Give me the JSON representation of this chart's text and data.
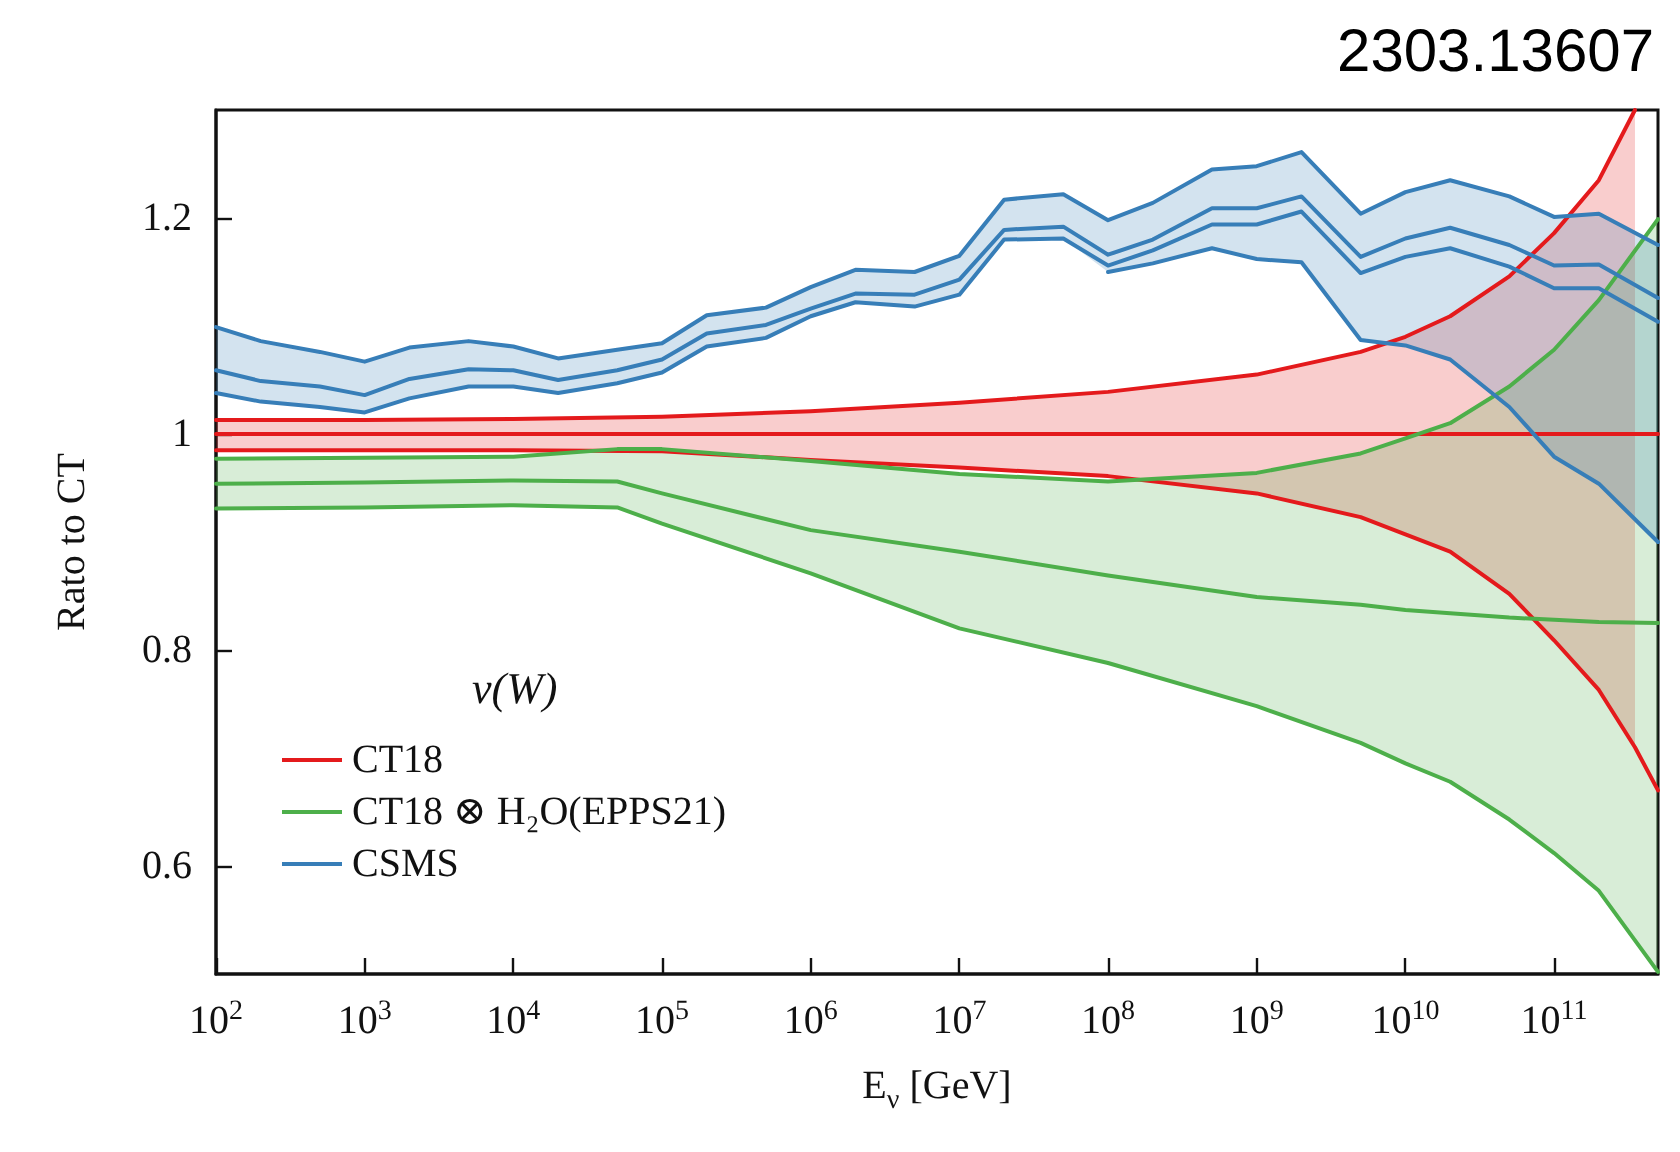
{
  "chart_data": {
    "type": "line",
    "title": "2303.13607",
    "xlabel": "E$_{ν}$ [GeV]",
    "ylabel": "Rato to CT",
    "legend_title": "ν(W)",
    "legend": "bottom left",
    "grid": false,
    "log": "x",
    "xlim": [
      100,
      500000000000
    ],
    "xticks": [
      {
        "value": 100,
        "label": "10$^{2}$"
      },
      {
        "value": 1000,
        "label": "10$^{3}$"
      },
      {
        "value": 10000,
        "label": "10$^{4}$"
      },
      {
        "value": 100000,
        "label": "10$^{5}$"
      },
      {
        "value": 1000000,
        "label": "10$^{6}$"
      },
      {
        "value": 10000000,
        "label": "10$^{7}$"
      },
      {
        "value": 100000000,
        "label": "10$^{8}$"
      },
      {
        "value": 1000000000,
        "label": "10$^{9}$"
      },
      {
        "value": 10000000000,
        "label": "10$^{10}$"
      },
      {
        "value": 100000000000,
        "label": "10$^{11}$"
      }
    ],
    "ylim": [
      0.5,
      1.3
    ],
    "yticks": [
      0.6,
      0.8,
      1.0,
      1.2
    ],
    "marker": "none",
    "line_style": "solid",
    "series": [
      {
        "name": "CT18",
        "color": "#e41a1c",
        "x": [
          100,
          1000,
          10000,
          100000,
          1000000,
          10000000,
          100000000,
          1000000000,
          5000000000,
          10000000000,
          20000000000,
          50000000000,
          100000000000,
          200000000000,
          350000000000,
          500000000000
        ],
        "values": [
          1.0,
          1.0,
          1.0,
          1.0,
          1.0,
          1.0,
          1.0,
          1.0,
          1.0,
          1.0,
          1.0,
          1.0,
          1.0,
          1.0,
          1.0,
          1.0
        ]
      },
      {
        "color": "#e41a1c",
        "x": [
          100,
          1000,
          10000,
          100000,
          1000000,
          10000000,
          100000000,
          1000000000,
          5000000000,
          10000000000,
          20000000000,
          50000000000,
          100000000000,
          200000000000,
          350000000000
        ],
        "values": [
          1.013,
          1.013,
          1.014,
          1.016,
          1.021,
          1.029,
          1.039,
          1.055,
          1.076,
          1.09,
          1.109,
          1.146,
          1.186,
          1.235,
          1.3
        ],
        "lower": [
          0.985,
          0.985,
          0.985,
          0.984,
          0.976,
          0.969,
          0.961,
          0.945,
          0.923,
          0.907,
          0.891,
          0.852,
          0.809,
          0.763,
          0.71
        ],
        "upper": [
          1.013,
          1.013,
          1.014,
          1.016,
          1.021,
          1.029,
          1.039,
          1.055,
          1.076,
          1.09,
          1.109,
          1.146,
          1.186,
          1.235,
          1.3
        ]
      },
      {
        "color": "#e41a1c",
        "x": [
          100,
          1000,
          10000,
          100000,
          1000000,
          10000000,
          100000000,
          1000000000,
          5000000000,
          10000000000,
          20000000000,
          50000000000,
          100000000000,
          200000000000,
          350000000000,
          500000000000
        ],
        "values": [
          0.985,
          0.985,
          0.985,
          0.984,
          0.976,
          0.969,
          0.961,
          0.945,
          0.923,
          0.907,
          0.891,
          0.852,
          0.809,
          0.763,
          0.71,
          0.67
        ]
      },
      {
        "name": "CT18 ⊗ H₂O(EPPS21)",
        "color": "#4daf4a",
        "x": [
          100,
          1000,
          10000,
          50000,
          100000,
          1000000,
          10000000,
          100000000,
          1000000000,
          5000000000,
          10000000000,
          20000000000,
          50000000000,
          100000000000,
          200000000000,
          500000000000
        ],
        "values": [
          0.954,
          0.955,
          0.957,
          0.956,
          0.945,
          0.911,
          0.891,
          0.869,
          0.849,
          0.842,
          0.837,
          0.834,
          0.83,
          0.828,
          0.826,
          0.825
        ],
        "lower": [
          0.931,
          0.932,
          0.934,
          0.932,
          0.917,
          0.871,
          0.82,
          0.788,
          0.748,
          0.714,
          0.695,
          0.678,
          0.643,
          0.612,
          0.577,
          0.502
        ],
        "upper": [
          0.977,
          0.978,
          0.979,
          0.986,
          0.986,
          0.975,
          0.963,
          0.956,
          0.964,
          0.982,
          0.996,
          1.01,
          1.044,
          1.078,
          1.124,
          1.199
        ]
      },
      {
        "color": "#4daf4a",
        "x": [
          100,
          1000,
          10000,
          50000,
          100000,
          1000000,
          10000000,
          100000000,
          1000000000,
          5000000000,
          10000000000,
          20000000000,
          50000000000,
          100000000000,
          200000000000,
          500000000000
        ],
        "values": [
          0.931,
          0.932,
          0.934,
          0.932,
          0.917,
          0.871,
          0.82,
          0.788,
          0.748,
          0.714,
          0.695,
          0.678,
          0.643,
          0.612,
          0.577,
          0.502
        ]
      },
      {
        "color": "#4daf4a",
        "x": [
          100,
          1000,
          10000,
          50000,
          100000,
          1000000,
          10000000,
          100000000,
          1000000000,
          5000000000,
          10000000000,
          20000000000,
          50000000000,
          100000000000,
          200000000000,
          500000000000
        ],
        "values": [
          0.977,
          0.978,
          0.979,
          0.986,
          0.986,
          0.975,
          0.963,
          0.956,
          0.964,
          0.982,
          0.996,
          1.01,
          1.044,
          1.078,
          1.124,
          1.199
        ]
      },
      {
        "name": "CSMS",
        "color": "#377eb8",
        "x": [
          100,
          200,
          500,
          1000,
          2000,
          5000,
          10000,
          20000,
          50000,
          100000,
          200000,
          500000,
          1000000,
          2000000,
          5000000,
          10000000,
          20000000,
          50000000,
          100000000,
          200000000,
          500000000,
          1000000000,
          2000000000,
          5000000000,
          10000000000,
          20000000000,
          50000000000,
          100000000000,
          200000000000,
          500000000000
        ],
        "values": [
          1.059,
          1.049,
          1.044,
          1.036,
          1.051,
          1.06,
          1.059,
          1.05,
          1.059,
          1.069,
          1.093,
          1.101,
          1.116,
          1.13,
          1.129,
          1.143,
          1.189,
          1.192,
          1.166,
          1.18,
          1.209,
          1.209,
          1.22,
          1.164,
          1.181,
          1.191,
          1.175,
          1.156,
          1.157,
          1.126
        ],
        "lower": [
          1.038,
          1.03,
          1.025,
          1.02,
          1.033,
          1.044,
          1.044,
          1.038,
          1.047,
          1.057,
          1.081,
          1.089,
          1.109,
          1.122,
          1.118,
          1.129,
          1.18,
          1.181,
          1.15,
          1.158,
          1.172,
          1.162,
          1.159,
          1.087,
          1.082,
          1.069,
          1.025,
          0.979,
          0.954,
          0.9
        ],
        "upper": [
          1.099,
          1.086,
          1.076,
          1.067,
          1.08,
          1.086,
          1.081,
          1.07,
          1.078,
          1.084,
          1.11,
          1.117,
          1.136,
          1.152,
          1.15,
          1.165,
          1.217,
          1.222,
          1.198,
          1.214,
          1.245,
          1.248,
          1.261,
          1.204,
          1.224,
          1.235,
          1.22,
          1.201,
          1.204,
          1.175
        ]
      },
      {
        "color": "#377eb8",
        "x": [
          100,
          200,
          500,
          1000,
          2000,
          5000,
          10000,
          20000,
          50000,
          100000,
          200000,
          500000,
          1000000,
          2000000,
          5000000,
          10000000,
          20000000,
          50000000,
          100000000,
          200000000,
          500000000,
          1000000000,
          2000000000,
          5000000000,
          10000000000,
          20000000000,
          50000000000,
          100000000000,
          200000000000,
          500000000000
        ],
        "values": [
          1.099,
          1.086,
          1.076,
          1.067,
          1.08,
          1.086,
          1.081,
          1.07,
          1.078,
          1.084,
          1.11,
          1.117,
          1.136,
          1.152,
          1.15,
          1.165,
          1.217,
          1.222,
          1.198,
          1.214,
          1.245,
          1.248,
          1.261,
          1.204,
          1.224,
          1.235,
          1.22,
          1.201,
          1.204,
          1.175
        ]
      },
      {
        "color": "#377eb8",
        "x": [
          100,
          200,
          500,
          1000,
          2000,
          5000,
          10000,
          20000,
          50000,
          100000,
          200000,
          500000,
          1000000,
          2000000,
          5000000,
          10000000,
          20000000,
          50000000,
          100000000,
          200000000,
          500000000,
          1000000000,
          2000000000,
          5000000000,
          10000000000,
          20000000000,
          50000000000,
          100000000000,
          200000000000,
          500000000000
        ],
        "values": [
          1.038,
          1.03,
          1.025,
          1.02,
          1.033,
          1.044,
          1.044,
          1.038,
          1.047,
          1.057,
          1.081,
          1.089,
          1.109,
          1.122,
          1.118,
          1.129,
          1.18,
          1.181,
          1.156,
          1.17,
          1.194,
          1.194,
          1.206,
          1.149,
          1.164,
          1.172,
          1.155,
          1.135,
          1.135,
          1.104
        ]
      },
      {
        "color": "#377eb8",
        "x": [
          100000000,
          200000000,
          500000000,
          1000000000,
          2000000000,
          5000000000,
          10000000000,
          20000000000,
          50000000000,
          100000000000,
          200000000000,
          500000000000
        ],
        "values": [
          1.15,
          1.158,
          1.172,
          1.162,
          1.159,
          1.087,
          1.082,
          1.069,
          1.025,
          0.979,
          0.954,
          0.9
        ]
      }
    ]
  }
}
